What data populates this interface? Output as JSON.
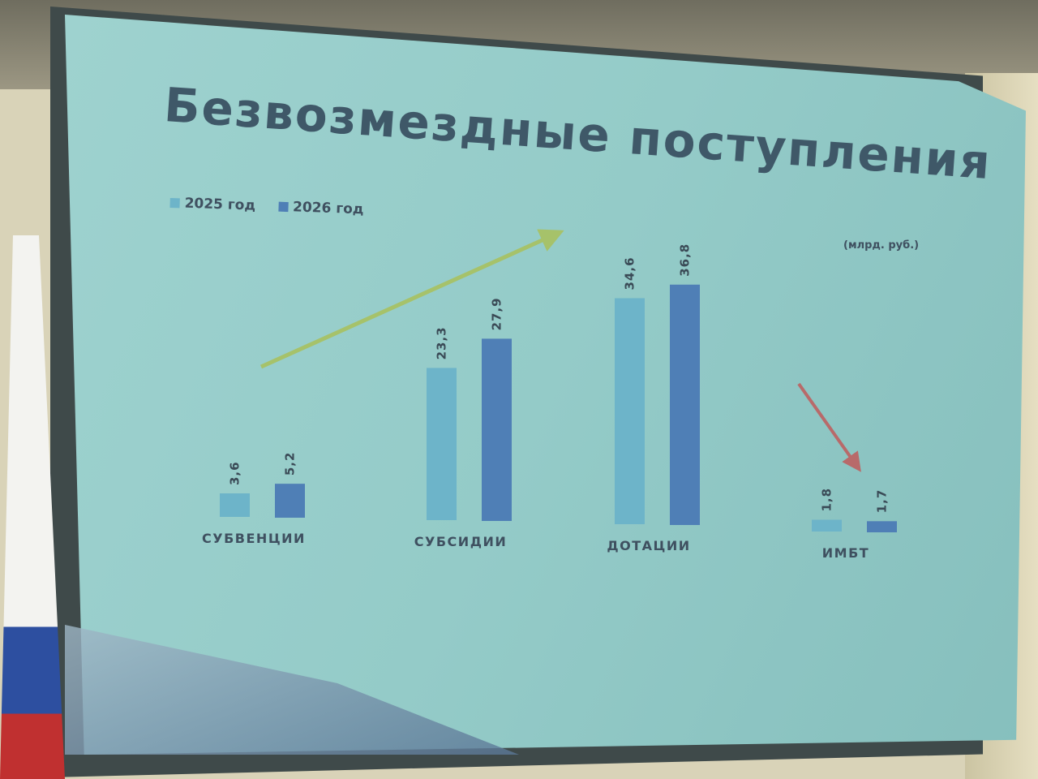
{
  "slide": {
    "title": "Безвозмездные поступления",
    "unit": "(млрд. руб.)"
  },
  "chart_data": {
    "type": "bar",
    "title": "Безвозмездные поступления",
    "ylabel": "(млрд. руб.)",
    "categories": [
      "СУБВЕНЦИИ",
      "СУБСИДИИ",
      "ДОТАЦИИ",
      "ИМБТ"
    ],
    "series": [
      {
        "name": "2025 год",
        "values": [
          3.6,
          23.3,
          34.6,
          1.8
        ],
        "labels": [
          "3,6",
          "23,3",
          "34,6",
          "1,8"
        ],
        "color": "#6db4c9"
      },
      {
        "name": "2026 год",
        "values": [
          5.2,
          27.9,
          36.8,
          1.7
        ],
        "labels": [
          "5,2",
          "27,9",
          "36,8",
          "1,7"
        ],
        "color": "#4f7fb6"
      }
    ],
    "legend": "top-left",
    "grid": false,
    "annotations": [
      {
        "type": "arrow-up",
        "color": "#a6c26a"
      },
      {
        "type": "arrow-down",
        "color": "#b86a6a"
      }
    ]
  }
}
